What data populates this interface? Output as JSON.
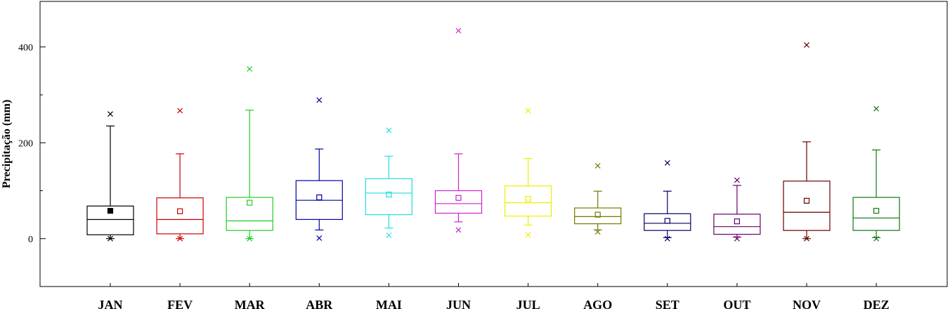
{
  "chart_data": {
    "type": "box",
    "title": "",
    "xlabel": "",
    "ylabel": "Precipitação (mm)",
    "ylim": [
      -100,
      495
    ],
    "yticks": [
      0,
      200,
      400
    ],
    "grid": false,
    "legend": "none",
    "categories": [
      "JAN",
      "FEV",
      "MAR",
      "ABR",
      "MAI",
      "JUN",
      "JUL",
      "AGO",
      "SET",
      "OUT",
      "NOV",
      "DEZ"
    ],
    "colors": [
      "#000000",
      "#cc0000",
      "#22cc22",
      "#0000aa",
      "#22dddd",
      "#cc22cc",
      "#eeee00",
      "#777700",
      "#000066",
      "#660066",
      "#660000",
      "#117711"
    ],
    "boxes": [
      {
        "min": 0,
        "q1": 8,
        "median": 40,
        "q3": 68,
        "max": 235,
        "mean": 58,
        "mean_filled": true,
        "outliers": [
          260,
          0
        ]
      },
      {
        "min": 0,
        "q1": 10,
        "median": 40,
        "q3": 85,
        "max": 177,
        "mean": 57,
        "mean_filled": false,
        "outliers": [
          267,
          0
        ]
      },
      {
        "min": 0,
        "q1": 17,
        "median": 37,
        "q3": 86,
        "max": 268,
        "mean": 75,
        "mean_filled": false,
        "outliers": [
          354,
          0
        ]
      },
      {
        "min": 18,
        "q1": 40,
        "median": 80,
        "q3": 121,
        "max": 187,
        "mean": 86,
        "mean_filled": false,
        "outliers": [
          289,
          1
        ]
      },
      {
        "min": 22,
        "q1": 50,
        "median": 95,
        "q3": 125,
        "max": 172,
        "mean": 92,
        "mean_filled": false,
        "outliers": [
          226,
          7
        ]
      },
      {
        "min": 35,
        "q1": 53,
        "median": 73,
        "q3": 100,
        "max": 177,
        "mean": 85,
        "mean_filled": false,
        "outliers": [
          434,
          18
        ]
      },
      {
        "min": 28,
        "q1": 47,
        "median": 75,
        "q3": 110,
        "max": 167,
        "mean": 83,
        "mean_filled": false,
        "outliers": [
          267,
          8
        ]
      },
      {
        "min": 18,
        "q1": 31,
        "median": 46,
        "q3": 64,
        "max": 99,
        "mean": 50,
        "mean_filled": false,
        "outliers": [
          152,
          14
        ]
      },
      {
        "min": 2,
        "q1": 17,
        "median": 32,
        "q3": 52,
        "max": 99,
        "mean": 37,
        "mean_filled": false,
        "outliers": [
          158,
          0
        ]
      },
      {
        "min": 3,
        "q1": 9,
        "median": 25,
        "q3": 51,
        "max": 111,
        "mean": 36,
        "mean_filled": false,
        "outliers": [
          122,
          0
        ]
      },
      {
        "min": 0,
        "q1": 17,
        "median": 55,
        "q3": 120,
        "max": 202,
        "mean": 79,
        "mean_filled": false,
        "outliers": [
          404,
          0
        ]
      },
      {
        "min": 2,
        "q1": 17,
        "median": 43,
        "q3": 86,
        "max": 185,
        "mean": 58,
        "mean_filled": false,
        "outliers": [
          271,
          0
        ]
      }
    ]
  }
}
